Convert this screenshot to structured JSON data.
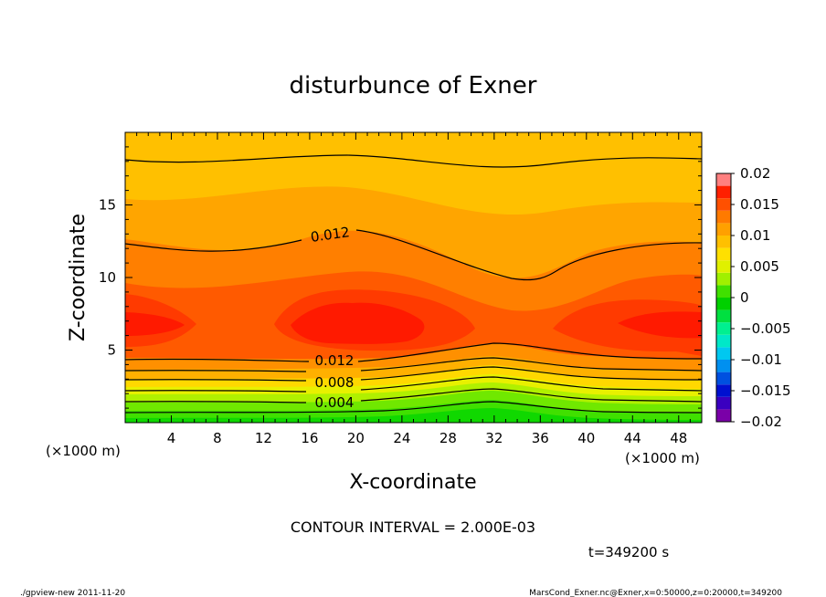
{
  "chart_data": {
    "type": "heatmap",
    "title": "disturbunce of Exner",
    "xlabel": "X-coordinate",
    "ylabel": "Z-coordinate",
    "x_unit": "(×1000 m)",
    "y_unit": "(×1000 m)",
    "xlim": [
      0,
      50
    ],
    "ylim": [
      0,
      20
    ],
    "x_ticks": [
      "4",
      "8",
      "12",
      "16",
      "20",
      "24",
      "28",
      "32",
      "36",
      "40",
      "44",
      "48"
    ],
    "y_ticks": [
      "5",
      "10",
      "15"
    ],
    "x_tick_values": [
      4,
      8,
      12,
      16,
      20,
      24,
      28,
      32,
      36,
      40,
      44,
      48
    ],
    "y_tick_values": [
      5,
      10,
      15
    ],
    "colorbar": {
      "labels": [
        "0.02",
        "0.015",
        "0.01",
        "0.005",
        "0",
        "−0.005",
        "−0.01",
        "−0.015",
        "−0.02"
      ],
      "levels": [
        -0.02,
        -0.018,
        -0.016,
        -0.014,
        -0.012,
        -0.01,
        -0.008,
        -0.006,
        -0.004,
        -0.002,
        0,
        0.002,
        0.004,
        0.006,
        0.008,
        0.01,
        0.012,
        0.014,
        0.016,
        0.018,
        0.02
      ],
      "colors": [
        "#7a00a8",
        "#3a00c0",
        "#0010d0",
        "#0050e0",
        "#0090f0",
        "#00c8f0",
        "#00e8c8",
        "#00f090",
        "#00e040",
        "#00d000",
        "#40e000",
        "#a0f000",
        "#e0f000",
        "#ffe000",
        "#ffc000",
        "#ffa000",
        "#ff7a00",
        "#ff5000",
        "#ff2000",
        "#ff8080"
      ]
    },
    "contour_labels": [
      {
        "text": "0.012",
        "x": 19.5,
        "z": 12.8
      },
      {
        "text": "0.012",
        "x": 19.5,
        "z": 4.2
      },
      {
        "text": "0.008",
        "x": 19.5,
        "z": 2.8
      },
      {
        "text": "0.004",
        "x": 19.5,
        "z": 1.4
      }
    ],
    "contour_interval": "CONTOUR INTERVAL = 2.000E-03",
    "time": "t=349200 s"
  },
  "footer": {
    "left": "./gpview-new   2011-11-20",
    "right": "MarsCond_Exner.nc@Exner,x=0:50000,z=0:20000,t=349200"
  }
}
